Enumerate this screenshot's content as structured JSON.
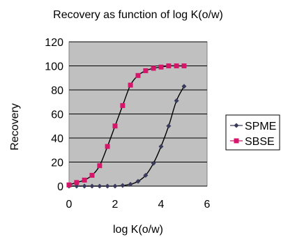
{
  "chart_data": {
    "type": "scatter",
    "title": "Recovery as function of log K(o/w)",
    "xlabel": "log K(o/w)",
    "ylabel": "Recovery",
    "xlim": [
      0,
      6
    ],
    "ylim": [
      0,
      120
    ],
    "xticks": [
      "0",
      "2",
      "4",
      "6"
    ],
    "yticks": [
      "0",
      "20",
      "40",
      "60",
      "80",
      "100",
      "120"
    ],
    "grid": true,
    "plot_background": "#c0c0c0",
    "legend_position": "right",
    "series": [
      {
        "name": "SPME",
        "color": "#3a3a5c",
        "marker": "diamond",
        "x": [
          0,
          0.33,
          0.67,
          1.0,
          1.33,
          1.67,
          2.0,
          2.33,
          2.67,
          3.0,
          3.33,
          3.67,
          4.0,
          4.33,
          4.67,
          5.0
        ],
        "y": [
          0,
          0,
          0,
          0,
          0,
          0,
          0,
          0.5,
          1.5,
          4,
          9,
          19,
          33,
          50,
          71,
          83
        ]
      },
      {
        "name": "SBSE",
        "color": "#d6166a",
        "marker": "square",
        "x": [
          0,
          0.33,
          0.67,
          1.0,
          1.33,
          1.67,
          2.0,
          2.33,
          2.67,
          3.0,
          3.33,
          3.67,
          4.0,
          4.33,
          4.67,
          5.0
        ],
        "y": [
          1,
          3,
          5,
          9,
          17,
          33,
          50,
          67,
          84,
          92,
          96,
          98,
          99,
          100,
          100,
          100
        ]
      }
    ]
  }
}
